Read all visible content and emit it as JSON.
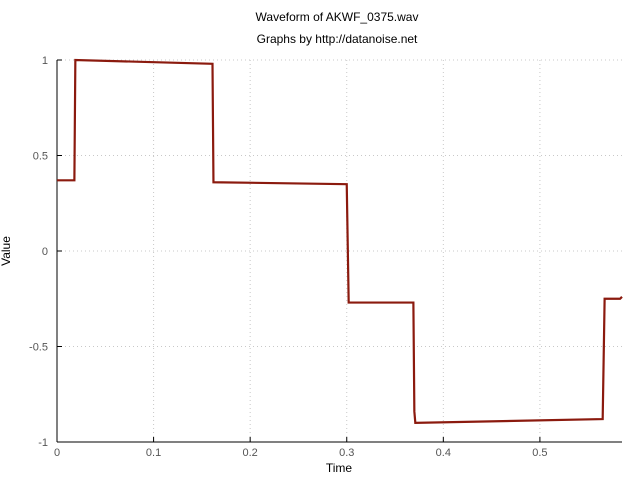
{
  "chart_data": {
    "type": "line",
    "title": "Waveform of AKWF_0375.wav",
    "subtitle": "Graphs by http://datanoise.net",
    "xlabel": "Time",
    "ylabel": "Value",
    "xlim": [
      0,
      0.585
    ],
    "ylim": [
      -1,
      1
    ],
    "x_ticks": [
      0,
      0.1,
      0.2,
      0.3,
      0.4,
      0.5
    ],
    "x_tick_labels": [
      "0",
      "0.1",
      "0.2",
      "0.3",
      "0.4",
      "0.5"
    ],
    "y_ticks": [
      1,
      0.5,
      0,
      -0.5,
      -1
    ],
    "y_tick_labels": [
      "1",
      "0.5",
      "0",
      "-0.5",
      "-1"
    ],
    "grid": true,
    "series": [
      {
        "color": "#8b1a0e",
        "x": [
          0,
          0.018,
          0.019,
          0.161,
          0.162,
          0.3,
          0.302,
          0.369,
          0.37,
          0.371,
          0.565,
          0.567,
          0.583,
          0.585
        ],
        "y": [
          0.37,
          0.37,
          1.0,
          0.98,
          0.36,
          0.35,
          -0.27,
          -0.27,
          -0.84,
          -0.9,
          -0.88,
          -0.25,
          -0.25,
          -0.24
        ]
      }
    ]
  }
}
